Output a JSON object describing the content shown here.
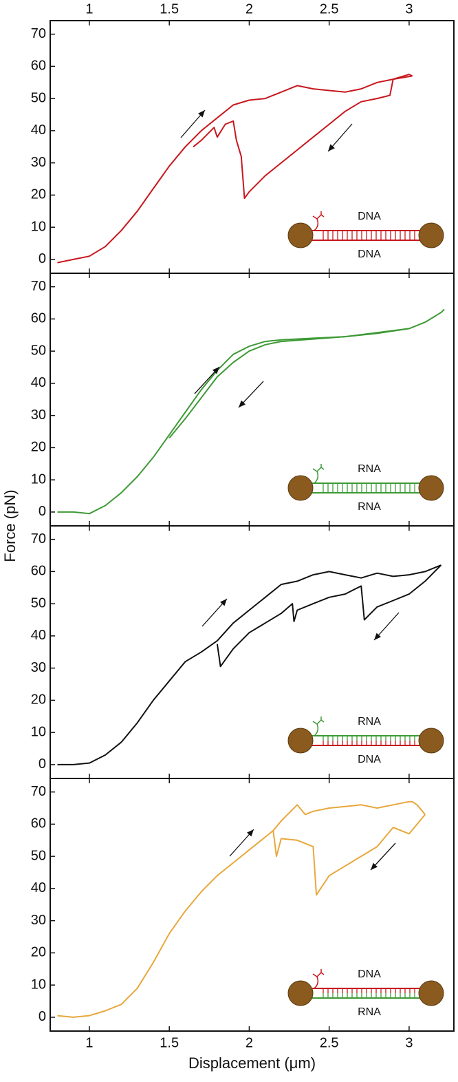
{
  "chart_data": [
    {
      "type": "line",
      "xlim": [
        0.755,
        3.28
      ],
      "ylim": [
        -4.3,
        74.2
      ],
      "xticks": [
        1,
        1.5,
        2,
        2.5,
        3
      ],
      "yticks": [
        0,
        10,
        20,
        30,
        40,
        50,
        60,
        70
      ],
      "xtick_side": "top",
      "ylabel": "Force (pN)",
      "series": [
        {
          "color": "#c8161d",
          "x": [
            0.8,
            0.9,
            1.0,
            1.1,
            1.2,
            1.3,
            1.4,
            1.5,
            1.6,
            1.7,
            1.8,
            1.9,
            2.0,
            2.1,
            2.2,
            2.3,
            2.4,
            2.5,
            2.6,
            2.7,
            2.8,
            2.9,
            3.0,
            3.02
          ],
          "values": [
            -1,
            0,
            1,
            4,
            9,
            15,
            22,
            29,
            35,
            40,
            44,
            48,
            49.5,
            50,
            52,
            54,
            53,
            52.5,
            52,
            53,
            55,
            56,
            57.5,
            57
          ]
        },
        {
          "color": "#c8161d",
          "x": [
            3.02,
            2.9,
            2.88,
            2.8,
            2.7,
            2.6,
            2.5,
            2.4,
            2.3,
            2.2,
            2.1,
            2.0,
            1.97,
            1.95,
            1.92,
            1.9,
            1.85,
            1.8,
            1.78,
            1.7,
            1.65
          ],
          "values": [
            57,
            56,
            51,
            50,
            49,
            46,
            42,
            38,
            34,
            30,
            26,
            21,
            19,
            32,
            37,
            43,
            42,
            38,
            41,
            37,
            35
          ]
        }
      ],
      "top_strand_label": "DNA",
      "bottom_strand_label": "DNA",
      "top_strand_color": "#c8161d",
      "bottom_strand_color": "#c8161d"
    },
    {
      "type": "line",
      "xlim": [
        0.755,
        3.28
      ],
      "ylim": [
        -4.3,
        74.2
      ],
      "xticks": [
        1,
        1.5,
        2,
        2.5,
        3
      ],
      "yticks": [
        0,
        10,
        20,
        30,
        40,
        50,
        60,
        70
      ],
      "series": [
        {
          "color": "#3d9a35",
          "x": [
            0.8,
            0.9,
            1.0,
            1.1,
            1.2,
            1.3,
            1.4,
            1.5,
            1.6,
            1.7,
            1.8,
            1.9,
            2.0,
            2.1,
            2.2,
            2.4,
            2.6,
            2.8,
            3.0,
            3.1,
            3.2,
            3.22
          ],
          "values": [
            0,
            0,
            -0.5,
            2,
            6,
            11,
            17,
            24,
            31,
            38,
            44,
            49,
            51.5,
            53,
            53.5,
            54,
            54.5,
            55.5,
            57,
            59,
            62,
            63
          ]
        },
        {
          "color": "#3d9a35",
          "x": [
            3.0,
            2.6,
            2.2,
            2.1,
            2.0,
            1.9,
            1.8,
            1.7,
            1.6,
            1.5
          ],
          "values": [
            57,
            54.5,
            53,
            52,
            50,
            46.5,
            42,
            35.5,
            29,
            23
          ]
        }
      ],
      "top_strand_label": "RNA",
      "bottom_strand_label": "RNA",
      "top_strand_color": "#3d9a35",
      "bottom_strand_color": "#3d9a35"
    },
    {
      "type": "line",
      "xlim": [
        0.755,
        3.28
      ],
      "ylim": [
        -4.3,
        74.2
      ],
      "xticks": [
        1,
        1.5,
        2,
        2.5,
        3
      ],
      "yticks": [
        0,
        10,
        20,
        30,
        40,
        50,
        60,
        70
      ],
      "series": [
        {
          "color": "#111111",
          "x": [
            0.8,
            0.9,
            1.0,
            1.1,
            1.2,
            1.3,
            1.4,
            1.5,
            1.6,
            1.7,
            1.8,
            1.9,
            2.0,
            2.1,
            2.2,
            2.3,
            2.4,
            2.5,
            2.6,
            2.7,
            2.8,
            2.9,
            3.0,
            3.1,
            3.2
          ],
          "values": [
            0,
            0,
            0.5,
            3,
            7,
            13,
            20,
            26,
            32,
            35,
            38.5,
            44,
            48,
            52,
            56,
            57,
            59,
            60,
            59,
            58,
            59.5,
            58.5,
            59,
            60,
            62
          ]
        },
        {
          "color": "#111111",
          "x": [
            3.2,
            3.1,
            3.0,
            2.9,
            2.8,
            2.72,
            2.7,
            2.6,
            2.5,
            2.4,
            2.3,
            2.28,
            2.27,
            2.2,
            2.1,
            2.0,
            1.9,
            1.82,
            1.8
          ],
          "values": [
            62,
            57,
            53,
            51,
            49,
            45,
            55.5,
            53,
            52,
            50,
            48,
            44.5,
            50,
            47,
            44,
            41,
            36,
            30.5,
            37.5
          ]
        }
      ],
      "top_strand_label": "RNA",
      "bottom_strand_label": "DNA",
      "top_strand_color": "#3d9a35",
      "bottom_strand_color": "#c8161d"
    },
    {
      "type": "line",
      "xlim": [
        0.755,
        3.28
      ],
      "ylim": [
        -4.3,
        74.2
      ],
      "xticks": [
        1,
        1.5,
        2,
        2.5,
        3
      ],
      "yticks": [
        0,
        10,
        20,
        30,
        40,
        50,
        60,
        70
      ],
      "xtick_side": "bottom",
      "xlabel": "Displacement (μm)",
      "series": [
        {
          "color": "#e8a73c",
          "x": [
            0.8,
            0.9,
            1.0,
            1.1,
            1.2,
            1.3,
            1.4,
            1.5,
            1.6,
            1.7,
            1.8,
            1.9,
            2.0,
            2.1,
            2.15,
            2.2,
            2.3,
            2.35,
            2.4,
            2.5,
            2.6,
            2.7,
            2.8,
            2.9,
            3.0,
            3.02,
            3.05,
            3.1
          ],
          "values": [
            0.5,
            0,
            0.5,
            2,
            4,
            9,
            17,
            26,
            33,
            39,
            44,
            48,
            52,
            56,
            58,
            61,
            66,
            63,
            64,
            65,
            65.5,
            66,
            65,
            66,
            67,
            67,
            66,
            63
          ]
        },
        {
          "color": "#e8a73c",
          "x": [
            3.1,
            3.0,
            2.9,
            2.8,
            2.7,
            2.6,
            2.5,
            2.42,
            2.4,
            2.3,
            2.2,
            2.17,
            2.15
          ],
          "values": [
            63,
            57,
            59,
            53,
            50,
            47,
            44,
            38,
            53,
            55,
            55.5,
            50,
            58
          ]
        }
      ],
      "top_strand_label": "DNA",
      "bottom_strand_label": "RNA",
      "top_strand_color": "#c8161d",
      "bottom_strand_color": "#3d9a35"
    }
  ]
}
